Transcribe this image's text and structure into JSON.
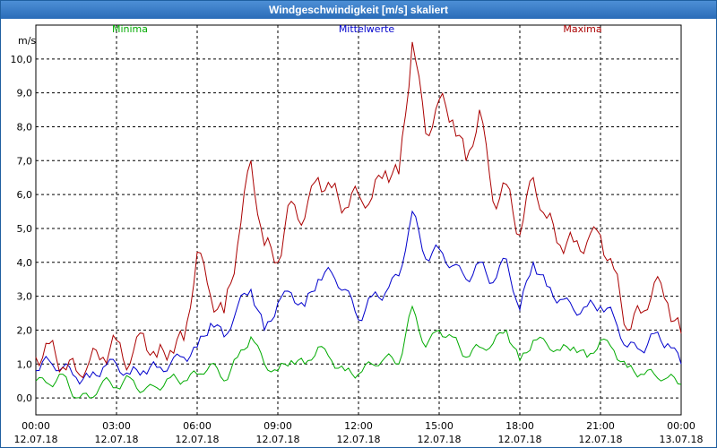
{
  "window": {
    "title": "Windgeschwindigkeit [m/s] skaliert"
  },
  "chart_data": {
    "type": "line",
    "ylabel": "m/s",
    "ylim": [
      -0.5,
      11.0
    ],
    "yticks": [
      "0,0",
      "1,0",
      "2,0",
      "3,0",
      "4,0",
      "5,0",
      "6,0",
      "7,0",
      "8,0",
      "9,0",
      "10,0"
    ],
    "xlim": [
      0,
      24
    ],
    "xticks": [
      {
        "time": "00:00",
        "date": "12.07.18"
      },
      {
        "time": "03:00",
        "date": "12.07.18"
      },
      {
        "time": "06:00",
        "date": "12.07.18"
      },
      {
        "time": "09:00",
        "date": "12.07.18"
      },
      {
        "time": "12:00",
        "date": "12.07.18"
      },
      {
        "time": "15:00",
        "date": "12.07.18"
      },
      {
        "time": "18:00",
        "date": "12.07.18"
      },
      {
        "time": "21:00",
        "date": "12.07.18"
      },
      {
        "time": "00:00",
        "date": "13.07.18"
      }
    ],
    "grid": true,
    "series": [
      {
        "name": "Minima",
        "color": "#00aa00",
        "x": [
          0,
          0.5,
          1,
          1.5,
          2,
          2.5,
          3,
          3.5,
          4,
          4.5,
          5,
          5.5,
          6,
          6.5,
          7,
          7.5,
          8,
          8.5,
          9,
          9.5,
          10,
          10.5,
          11,
          11.5,
          12,
          12.5,
          13,
          13.5,
          14,
          14.5,
          15,
          15.5,
          16,
          16.5,
          17,
          17.5,
          18,
          18.5,
          19,
          19.5,
          20,
          20.5,
          21,
          21.5,
          22,
          22.5,
          23,
          23.5,
          24
        ],
        "values": [
          0.5,
          0.4,
          0.7,
          0.0,
          0.0,
          0.5,
          0.3,
          0.6,
          0.2,
          0.3,
          0.6,
          0.5,
          0.7,
          1.0,
          0.5,
          1.2,
          1.8,
          1.0,
          0.8,
          1.1,
          1.0,
          1.5,
          1.1,
          0.8,
          0.7,
          1.0,
          1.2,
          1.0,
          2.7,
          1.5,
          2.0,
          1.8,
          1.2,
          1.5,
          1.6,
          2.0,
          1.1,
          1.7,
          1.6,
          1.4,
          1.5,
          1.2,
          1.7,
          1.4,
          0.9,
          0.7,
          0.7,
          0.6,
          0.4
        ]
      },
      {
        "name": "Mittelwerte",
        "color": "#0000cc",
        "x": [
          0,
          0.5,
          1,
          1.5,
          2,
          2.5,
          3,
          3.5,
          4,
          4.5,
          5,
          5.5,
          6,
          6.5,
          7,
          7.5,
          8,
          8.5,
          9,
          9.5,
          10,
          10.5,
          11,
          11.5,
          12,
          12.5,
          13,
          13.5,
          14,
          14.5,
          15,
          15.5,
          16,
          16.5,
          17,
          17.5,
          18,
          18.5,
          19,
          19.5,
          20,
          20.5,
          21,
          21.5,
          22,
          22.5,
          23,
          23.5,
          24
        ],
        "values": [
          0.8,
          1.1,
          0.9,
          0.6,
          0.6,
          0.9,
          1.0,
          0.7,
          0.8,
          0.9,
          1.0,
          1.2,
          1.5,
          2.2,
          1.8,
          2.7,
          3.2,
          2.0,
          2.8,
          3.1,
          2.7,
          3.5,
          3.7,
          3.2,
          2.3,
          3.0,
          3.1,
          3.6,
          5.5,
          4.1,
          4.4,
          3.9,
          3.5,
          4.0,
          3.4,
          4.1,
          2.6,
          4.0,
          3.3,
          2.9,
          2.6,
          2.7,
          2.7,
          2.4,
          1.5,
          1.4,
          1.9,
          1.6,
          1.0
        ]
      },
      {
        "name": "Maxima",
        "color": "#aa0000",
        "x": [
          0,
          0.5,
          1,
          1.5,
          2,
          2.5,
          3,
          3.5,
          4,
          4.5,
          5,
          5.5,
          6,
          6.5,
          7,
          7.5,
          8,
          8.5,
          9,
          9.5,
          10,
          10.5,
          11,
          11.5,
          12,
          12.5,
          13,
          13.5,
          14,
          14.5,
          15,
          15.5,
          16,
          16.5,
          17,
          17.5,
          18,
          18.5,
          19,
          19.5,
          20,
          20.5,
          21,
          21.5,
          22,
          22.5,
          23,
          23.5,
          24
        ],
        "values": [
          1.2,
          1.6,
          0.9,
          0.8,
          1.1,
          1.2,
          1.7,
          1.0,
          1.9,
          1.2,
          1.4,
          1.7,
          4.3,
          3.0,
          2.5,
          4.5,
          7.0,
          4.5,
          4.0,
          5.8,
          5.3,
          6.5,
          6.2,
          5.6,
          6.0,
          5.9,
          6.7,
          6.6,
          10.5,
          7.8,
          8.8,
          8.2,
          7.0,
          8.5,
          5.8,
          6.3,
          4.8,
          6.5,
          5.3,
          4.5,
          4.6,
          4.6,
          4.8,
          3.8,
          2.0,
          2.5,
          3.4,
          2.8,
          1.9
        ]
      }
    ]
  }
}
